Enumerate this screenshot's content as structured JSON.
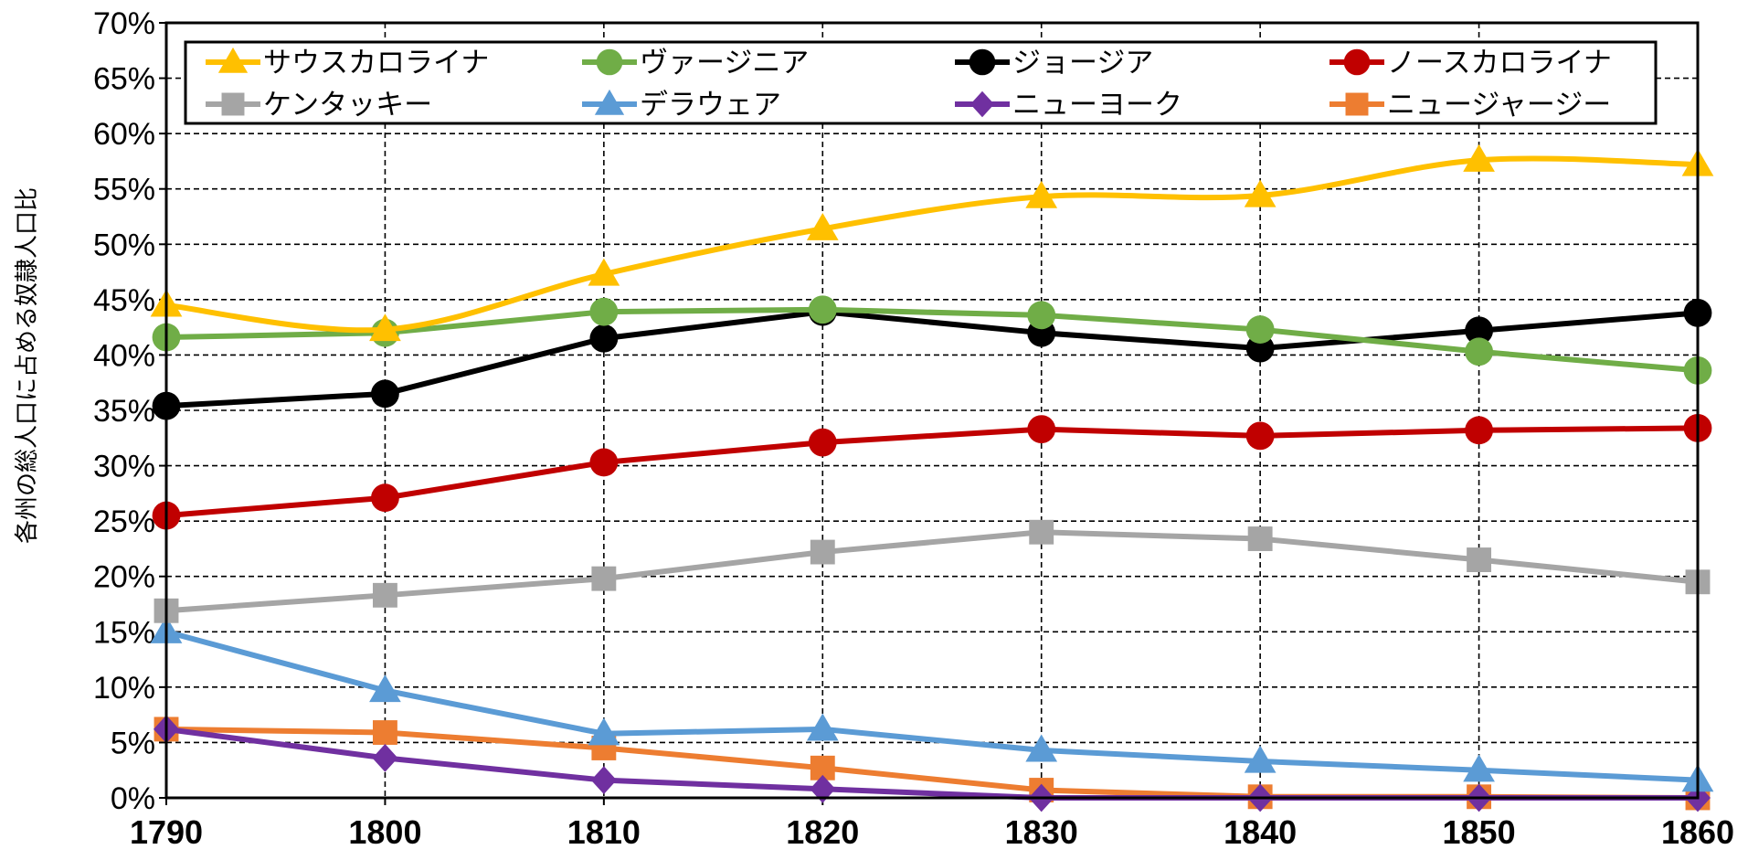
{
  "chart_data": {
    "type": "line",
    "title": "",
    "xlabel": "",
    "ylabel": "各州の総人口に占める奴隷人口比",
    "x": [
      1790,
      1800,
      1810,
      1820,
      1830,
      1840,
      1850,
      1860
    ],
    "x_tick_labels": [
      "1790",
      "1800",
      "1810",
      "1820",
      "1830",
      "1840",
      "1850",
      "1860"
    ],
    "ylim": [
      0,
      70
    ],
    "y_ticks": [
      0,
      5,
      10,
      15,
      20,
      25,
      30,
      35,
      40,
      45,
      50,
      55,
      60,
      65,
      70
    ],
    "y_tick_labels": [
      "0%",
      "5%",
      "10%",
      "15%",
      "20%",
      "25%",
      "30%",
      "35%",
      "40%",
      "45%",
      "50%",
      "55%",
      "60%",
      "65%",
      "70%"
    ],
    "grid": true,
    "legend_position": "top",
    "series": [
      {
        "name": "サウスカロライナ",
        "color": "#FFC000",
        "marker": "triangle",
        "smooth": true,
        "values": [
          44.5,
          42.3,
          47.3,
          51.4,
          54.3,
          54.4,
          57.6,
          57.2
        ]
      },
      {
        "name": "ヴァージニア",
        "color": "#70AD47",
        "marker": "circle",
        "smooth": false,
        "values": [
          41.6,
          42.0,
          43.9,
          44.1,
          43.6,
          42.3,
          40.3,
          38.6
        ]
      },
      {
        "name": "ジョージア",
        "color": "#000000",
        "marker": "circle",
        "smooth": false,
        "values": [
          35.4,
          36.5,
          41.5,
          43.9,
          42.0,
          40.6,
          42.2,
          43.8
        ]
      },
      {
        "name": "ノースカロライナ",
        "color": "#C00000",
        "marker": "circle",
        "smooth": false,
        "values": [
          25.5,
          27.1,
          30.3,
          32.1,
          33.3,
          32.7,
          33.2,
          33.4
        ]
      },
      {
        "name": "ケンタッキー",
        "color": "#A5A5A5",
        "marker": "square",
        "smooth": false,
        "values": [
          16.9,
          18.3,
          19.8,
          22.2,
          24.0,
          23.4,
          21.5,
          19.5
        ]
      },
      {
        "name": "デラウェア",
        "color": "#5B9BD5",
        "marker": "triangle",
        "smooth": false,
        "values": [
          15.0,
          9.7,
          5.8,
          6.2,
          4.3,
          3.3,
          2.5,
          1.6
        ]
      },
      {
        "name": "ニューヨーク",
        "color": "#7030A0",
        "marker": "diamond",
        "smooth": false,
        "values": [
          6.2,
          3.6,
          1.6,
          0.8,
          0.0,
          0.0,
          0.0,
          0.0
        ]
      },
      {
        "name": "ニュージャージー",
        "color": "#ED7D31",
        "marker": "square",
        "smooth": false,
        "values": [
          6.2,
          5.9,
          4.5,
          2.7,
          0.7,
          0.1,
          0.1,
          0.0
        ]
      }
    ]
  }
}
